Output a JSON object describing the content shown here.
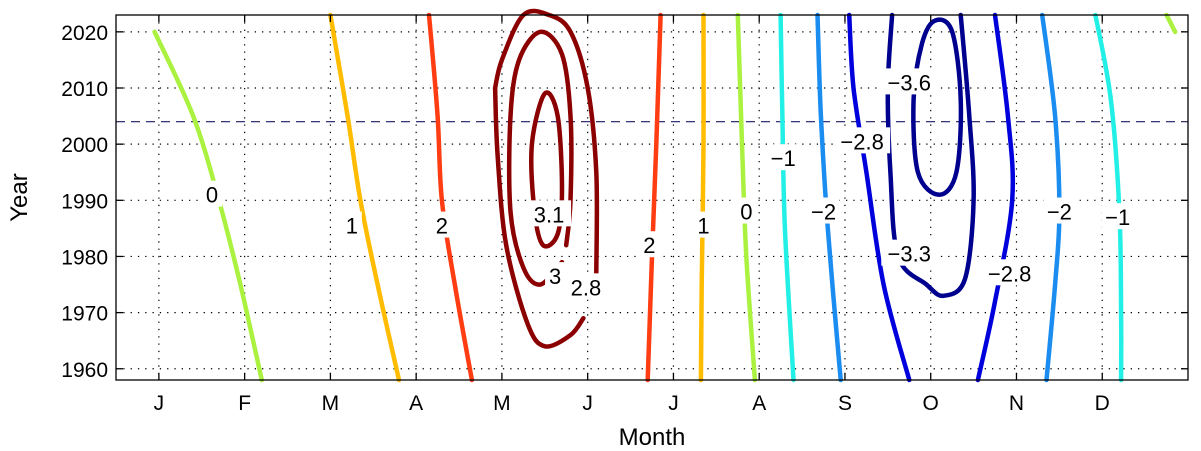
{
  "chart_data": {
    "type": "contour",
    "xlabel": "Month",
    "ylabel": "Year",
    "x_tick_labels": [
      "J",
      "F",
      "M",
      "A",
      "M",
      "J",
      "J",
      "A",
      "S",
      "O",
      "N",
      "D"
    ],
    "y_ticks": [
      1960,
      1970,
      1980,
      1990,
      2000,
      2010,
      2020
    ],
    "ylim": [
      1958,
      2023
    ],
    "grid": "dotted",
    "reference_line": {
      "year": 2004,
      "style": "dashed",
      "color": "#1a1a66"
    },
    "contours": [
      {
        "level": 0,
        "color": "#aaf23f",
        "label": "0",
        "points": [
          [
            0.45,
            2020
          ],
          [
            0.9,
            2005
          ],
          [
            1.2,
            1990
          ],
          [
            1.45,
            1975
          ],
          [
            1.7,
            1958
          ]
        ],
        "label_at": [
          1.12,
          1991
        ]
      },
      {
        "level": 1,
        "color": "#ffbc00",
        "label": "1",
        "points": [
          [
            2.5,
            2023
          ],
          [
            2.7,
            2005
          ],
          [
            2.85,
            1990
          ],
          [
            3.05,
            1975
          ],
          [
            3.3,
            1958
          ]
        ],
        "label_at": [
          2.75,
          1985.5
        ]
      },
      {
        "level": 2,
        "color": "#ff3c12",
        "label": "2",
        "points": [
          [
            3.65,
            2023
          ],
          [
            3.75,
            2005
          ],
          [
            3.8,
            1990
          ],
          [
            3.95,
            1975
          ],
          [
            4.15,
            1958
          ]
        ],
        "label_at": [
          3.8,
          1985.5
        ]
      },
      {
        "level": 2.8,
        "color": "#8b0000",
        "label": "2.8",
        "points": [
          [
            4.42,
            2010
          ],
          [
            4.45,
            1998
          ],
          [
            4.55,
            1982
          ],
          [
            4.8,
            1968
          ],
          [
            5.0,
            1964
          ],
          [
            5.3,
            1966
          ],
          [
            5.45,
            1969
          ]
        ],
        "closed": false,
        "label_at": [
          5.48,
          1974.5
        ]
      },
      {
        "level": 2.8,
        "color": "#8b0000",
        "label": "",
        "points": [
          [
            5.6,
            1977
          ],
          [
            5.6,
            1995
          ],
          [
            5.5,
            2010
          ],
          [
            5.3,
            2020
          ],
          [
            5.05,
            2023
          ],
          [
            4.75,
            2023
          ],
          [
            4.5,
            2015
          ],
          [
            4.42,
            2010
          ]
        ],
        "closed": false
      },
      {
        "level": 3,
        "color": "#8b0000",
        "label": "3",
        "points": [
          [
            5.2,
            1979
          ],
          [
            4.95,
            1975
          ],
          [
            4.75,
            1978
          ],
          [
            4.6,
            1988
          ],
          [
            4.6,
            2005
          ],
          [
            4.7,
            2015
          ],
          [
            4.95,
            2020
          ],
          [
            5.2,
            2016
          ],
          [
            5.3,
            2005
          ],
          [
            5.3,
            1990
          ],
          [
            5.25,
            1982
          ]
        ],
        "closed": false,
        "label_at": [
          5.12,
          1976.5
        ]
      },
      {
        "level": 3.1,
        "color": "#8b0000",
        "label": "3.1",
        "points": [
          [
            4.88,
            1988
          ],
          [
            4.85,
            2000
          ],
          [
            5.0,
            2009
          ],
          [
            5.15,
            2005
          ],
          [
            5.2,
            1992
          ],
          [
            5.15,
            1984
          ],
          [
            4.98,
            1982
          ]
        ],
        "closed": true,
        "label_at": [
          5.05,
          1987.5
        ]
      },
      {
        "level": 2,
        "color": "#ff3c12",
        "label": "2",
        "points": [
          [
            6.35,
            2023
          ],
          [
            6.3,
            2000
          ],
          [
            6.25,
            1980
          ],
          [
            6.2,
            1958
          ]
        ],
        "label_at": [
          6.22,
          1982
        ]
      },
      {
        "level": 1,
        "color": "#ffbc00",
        "label": "1",
        "points": [
          [
            6.85,
            2023
          ],
          [
            6.85,
            2000
          ],
          [
            6.83,
            1975
          ],
          [
            6.82,
            1958
          ]
        ],
        "label_at": [
          6.85,
          1985.5
        ]
      },
      {
        "level": 0,
        "color": "#aaf23f",
        "label": "0",
        "points": [
          [
            7.25,
            2023
          ],
          [
            7.3,
            2000
          ],
          [
            7.35,
            1980
          ],
          [
            7.45,
            1958
          ]
        ],
        "label_at": [
          7.35,
          1988
        ]
      },
      {
        "level": -1,
        "color": "#22f0e6",
        "label": "−1",
        "points": [
          [
            7.75,
            2023
          ],
          [
            7.77,
            2005
          ],
          [
            7.8,
            1985
          ],
          [
            7.9,
            1958
          ]
        ],
        "label_at": [
          7.78,
          1997.5
        ]
      },
      {
        "level": -2,
        "color": "#1b8cf0",
        "label": "−2",
        "points": [
          [
            8.18,
            2023
          ],
          [
            8.22,
            2005
          ],
          [
            8.3,
            1985
          ],
          [
            8.45,
            1958
          ]
        ],
        "label_at": [
          8.25,
          1988
        ]
      },
      {
        "level": -2.8,
        "color": "#0000dd",
        "label": "−2.8",
        "points": [
          [
            8.55,
            2023
          ],
          [
            8.6,
            2010
          ],
          [
            8.75,
            1995
          ],
          [
            8.95,
            1975
          ],
          [
            9.25,
            1958
          ]
        ],
        "label_at": [
          8.7,
          2000.5
        ]
      },
      {
        "level": -3.3,
        "color": "#00008f",
        "label": "−3.3",
        "points": [
          [
            9.05,
            2023
          ],
          [
            9.0,
            2010
          ],
          [
            9.03,
            1995
          ],
          [
            9.12,
            1980
          ],
          [
            9.45,
            1975
          ],
          [
            9.65,
            1973
          ],
          [
            9.9,
            1976
          ],
          [
            10.0,
            1990
          ],
          [
            9.95,
            2005
          ],
          [
            9.85,
            2023
          ]
        ],
        "label_at": [
          9.25,
          1980.5
        ]
      },
      {
        "level": -3.6,
        "color": "#00008f",
        "label": "−3.6",
        "points": [
          [
            9.4,
            2018
          ],
          [
            9.3,
            2008
          ],
          [
            9.35,
            1995
          ],
          [
            9.6,
            1991
          ],
          [
            9.8,
            1995
          ],
          [
            9.85,
            2008
          ],
          [
            9.75,
            2020
          ],
          [
            9.55,
            2022
          ]
        ],
        "closed": true,
        "label_at": [
          9.25,
          2011
        ]
      },
      {
        "level": -2.8,
        "color": "#0000dd",
        "label": "−2.8",
        "points": [
          [
            10.25,
            2023
          ],
          [
            10.4,
            2005
          ],
          [
            10.45,
            1990
          ],
          [
            10.25,
            1972
          ],
          [
            10.05,
            1958
          ]
        ],
        "label_at": [
          10.42,
          1977
        ]
      },
      {
        "level": -2,
        "color": "#1b8cf0",
        "label": "−2",
        "points": [
          [
            10.8,
            2023
          ],
          [
            10.95,
            2005
          ],
          [
            11.0,
            1988
          ],
          [
            10.95,
            1975
          ],
          [
            10.85,
            1958
          ]
        ],
        "label_at": [
          11.0,
          1988
        ]
      },
      {
        "level": -1,
        "color": "#22f0e6",
        "label": "−1",
        "points": [
          [
            11.42,
            2023
          ],
          [
            11.6,
            2008
          ],
          [
            11.7,
            1988
          ],
          [
            11.72,
            1970
          ],
          [
            11.72,
            1958
          ]
        ],
        "label_at": [
          11.68,
          1987
        ]
      },
      {
        "level": 0,
        "color": "#aaf23f",
        "label": "",
        "points": [
          [
            12.25,
            2023
          ],
          [
            12.35,
            2020
          ]
        ]
      }
    ]
  }
}
